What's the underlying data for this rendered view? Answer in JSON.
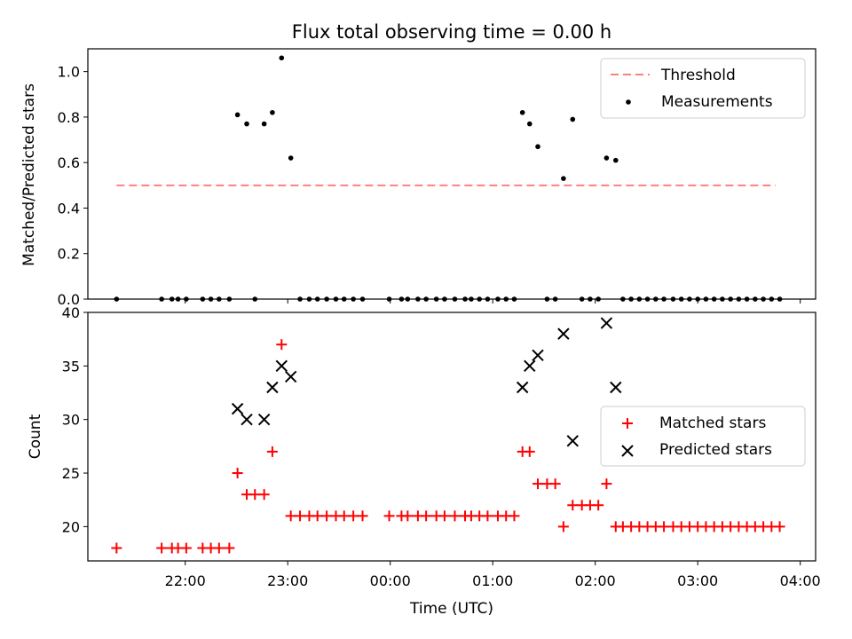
{
  "chart_data": [
    {
      "type": "scatter",
      "title": "Flux total observing time = 0.00 h",
      "xlabel": "",
      "ylabel": "Matched/Predicted stars",
      "ylim": [
        0,
        1.1
      ],
      "yticks": [
        "0.0",
        "0.2",
        "0.4",
        "0.6",
        "0.8",
        "1.0"
      ],
      "xlim_hours": [
        21.05,
        28.15
      ],
      "legend_position": "top-right",
      "threshold": {
        "name": "Threshold",
        "value": 0.5,
        "x_range_hours": [
          21.33,
          27.76
        ],
        "color": "#ff7f7f"
      },
      "measurements": {
        "name": "Measurements",
        "color": "#000000",
        "points": [
          [
            21.33,
            0
          ],
          [
            21.77,
            0
          ],
          [
            21.87,
            0
          ],
          [
            21.93,
            0
          ],
          [
            22.01,
            0
          ],
          [
            22.17,
            0
          ],
          [
            22.25,
            0
          ],
          [
            22.33,
            0
          ],
          [
            22.43,
            0
          ],
          [
            22.51,
            0.81
          ],
          [
            22.6,
            0.77
          ],
          [
            22.68,
            0
          ],
          [
            22.77,
            0.77
          ],
          [
            22.85,
            0.82
          ],
          [
            22.94,
            1.06
          ],
          [
            23.03,
            0.62
          ],
          [
            23.12,
            0
          ],
          [
            23.21,
            0
          ],
          [
            23.29,
            0
          ],
          [
            23.38,
            0
          ],
          [
            23.47,
            0
          ],
          [
            23.55,
            0
          ],
          [
            23.64,
            0
          ],
          [
            23.73,
            0
          ],
          [
            23.99,
            0
          ],
          [
            24.11,
            0
          ],
          [
            24.17,
            0
          ],
          [
            24.27,
            0
          ],
          [
            24.35,
            0
          ],
          [
            24.45,
            0
          ],
          [
            24.53,
            0
          ],
          [
            24.63,
            0
          ],
          [
            24.73,
            0
          ],
          [
            24.79,
            0
          ],
          [
            24.87,
            0
          ],
          [
            24.95,
            0
          ],
          [
            25.05,
            0
          ],
          [
            25.13,
            0
          ],
          [
            25.21,
            0
          ],
          [
            25.29,
            0.82
          ],
          [
            25.36,
            0.77
          ],
          [
            25.44,
            0.67
          ],
          [
            25.53,
            0
          ],
          [
            25.61,
            0
          ],
          [
            25.69,
            0.53
          ],
          [
            25.78,
            0.79
          ],
          [
            25.87,
            0
          ],
          [
            25.95,
            0
          ],
          [
            26.03,
            0
          ],
          [
            26.11,
            0.62
          ],
          [
            26.2,
            0.61
          ],
          [
            26.27,
            0
          ],
          [
            26.35,
            0
          ],
          [
            26.43,
            0
          ],
          [
            26.51,
            0
          ],
          [
            26.59,
            0
          ],
          [
            26.67,
            0
          ],
          [
            26.76,
            0
          ],
          [
            26.84,
            0
          ],
          [
            26.92,
            0
          ],
          [
            27.0,
            0
          ],
          [
            27.08,
            0
          ],
          [
            27.16,
            0
          ],
          [
            27.24,
            0
          ],
          [
            27.32,
            0
          ],
          [
            27.4,
            0
          ],
          [
            27.48,
            0
          ],
          [
            27.56,
            0
          ],
          [
            27.64,
            0
          ],
          [
            27.72,
            0
          ],
          [
            27.8,
            0
          ]
        ]
      }
    },
    {
      "type": "scatter",
      "title": "",
      "xlabel": "Time (UTC)",
      "ylabel": "Count",
      "ylim": [
        16.8,
        40
      ],
      "yticks": [
        "20",
        "25",
        "30",
        "35",
        "40"
      ],
      "xlim_hours": [
        21.05,
        28.15
      ],
      "xtick_hours": [
        22,
        23,
        24,
        25,
        26,
        27,
        28
      ],
      "xticks": [
        "22:00",
        "23:00",
        "00:00",
        "01:00",
        "02:00",
        "03:00",
        "04:00"
      ],
      "legend_position": "center-right",
      "series": [
        {
          "name": "Matched stars",
          "marker": "plus",
          "color": "#ff0000",
          "points": [
            [
              21.33,
              18
            ],
            [
              21.77,
              18
            ],
            [
              21.87,
              18
            ],
            [
              21.93,
              18
            ],
            [
              22.01,
              18
            ],
            [
              22.17,
              18
            ],
            [
              22.25,
              18
            ],
            [
              22.33,
              18
            ],
            [
              22.43,
              18
            ],
            [
              22.51,
              25
            ],
            [
              22.6,
              23
            ],
            [
              22.68,
              23
            ],
            [
              22.77,
              23
            ],
            [
              22.85,
              27
            ],
            [
              22.94,
              37
            ],
            [
              23.03,
              21
            ],
            [
              23.12,
              21
            ],
            [
              23.21,
              21
            ],
            [
              23.29,
              21
            ],
            [
              23.38,
              21
            ],
            [
              23.47,
              21
            ],
            [
              23.55,
              21
            ],
            [
              23.64,
              21
            ],
            [
              23.73,
              21
            ],
            [
              23.99,
              21
            ],
            [
              24.11,
              21
            ],
            [
              24.17,
              21
            ],
            [
              24.27,
              21
            ],
            [
              24.35,
              21
            ],
            [
              24.45,
              21
            ],
            [
              24.53,
              21
            ],
            [
              24.63,
              21
            ],
            [
              24.73,
              21
            ],
            [
              24.79,
              21
            ],
            [
              24.87,
              21
            ],
            [
              24.95,
              21
            ],
            [
              25.05,
              21
            ],
            [
              25.13,
              21
            ],
            [
              25.21,
              21
            ],
            [
              25.29,
              27
            ],
            [
              25.36,
              27
            ],
            [
              25.44,
              24
            ],
            [
              25.53,
              24
            ],
            [
              25.61,
              24
            ],
            [
              25.69,
              20
            ],
            [
              25.78,
              22
            ],
            [
              25.87,
              22
            ],
            [
              25.95,
              22
            ],
            [
              26.03,
              22
            ],
            [
              26.11,
              24
            ],
            [
              26.2,
              20
            ],
            [
              26.27,
              20
            ],
            [
              26.35,
              20
            ],
            [
              26.43,
              20
            ],
            [
              26.51,
              20
            ],
            [
              26.59,
              20
            ],
            [
              26.67,
              20
            ],
            [
              26.76,
              20
            ],
            [
              26.84,
              20
            ],
            [
              26.92,
              20
            ],
            [
              27.0,
              20
            ],
            [
              27.08,
              20
            ],
            [
              27.16,
              20
            ],
            [
              27.24,
              20
            ],
            [
              27.32,
              20
            ],
            [
              27.4,
              20
            ],
            [
              27.48,
              20
            ],
            [
              27.56,
              20
            ],
            [
              27.64,
              20
            ],
            [
              27.72,
              20
            ],
            [
              27.8,
              20
            ]
          ]
        },
        {
          "name": "Predicted stars",
          "marker": "x",
          "color": "#000000",
          "points": [
            [
              22.51,
              31
            ],
            [
              22.6,
              30
            ],
            [
              22.77,
              30
            ],
            [
              22.85,
              33
            ],
            [
              22.94,
              35
            ],
            [
              23.03,
              34
            ],
            [
              25.29,
              33
            ],
            [
              25.36,
              35
            ],
            [
              25.44,
              36
            ],
            [
              25.69,
              38
            ],
            [
              25.78,
              28
            ],
            [
              26.11,
              39
            ],
            [
              26.2,
              33
            ]
          ]
        }
      ]
    }
  ]
}
